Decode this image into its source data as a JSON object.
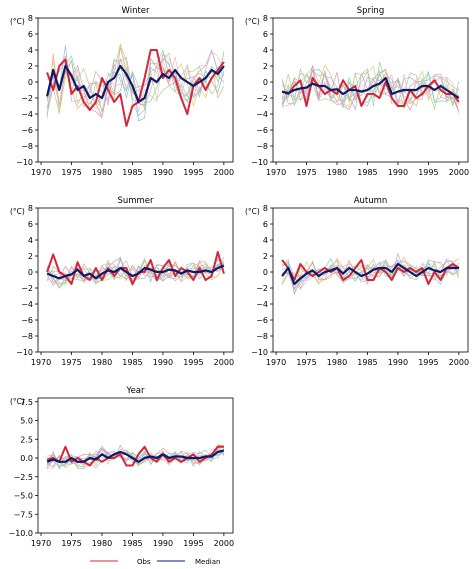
{
  "figure": {
    "colors": {
      "obs": "#d62739",
      "median": "#0a1a6e",
      "members": [
        "#9ab7d6",
        "#f4a582",
        "#8fd19e",
        "#c6a0d8",
        "#e7c46b",
        "#7fc4c9",
        "#d98db0",
        "#b7b7b7",
        "#a8d08d",
        "#f2b8c6"
      ]
    }
  },
  "legend": {
    "obs_label": "Obs",
    "median_label": "Median",
    "placement": "bottom-center"
  },
  "chart_data": [
    {
      "type": "line",
      "title": "Winter",
      "ylabel": "(°C)",
      "x": [
        1971,
        1972,
        1973,
        1974,
        1975,
        1976,
        1977,
        1978,
        1979,
        1980,
        1981,
        1982,
        1983,
        1984,
        1985,
        1986,
        1987,
        1988,
        1989,
        1990,
        1991,
        1992,
        1993,
        1994,
        1995,
        1996,
        1997,
        1998,
        1999,
        2000
      ],
      "ylim": [
        -10,
        8
      ],
      "yticks": [
        "8",
        "6",
        "4",
        "2",
        "0",
        "−2",
        "−4",
        "−6",
        "−8",
        "−10"
      ],
      "xticks": [
        "1970",
        "1975",
        "1980",
        "1985",
        "1990",
        "1995",
        "2000"
      ],
      "series": [
        {
          "name": "Obs",
          "values": [
            1.2,
            -1.0,
            2.0,
            2.8,
            -1.5,
            -0.5,
            -2.5,
            -3.5,
            -2.5,
            0.5,
            -1.0,
            -2.5,
            -1.5,
            -5.5,
            -3.0,
            -2.5,
            0.5,
            4.0,
            4.0,
            0.5,
            1.5,
            0.5,
            -2.0,
            -4.0,
            -0.5,
            0.5,
            -1.0,
            0.5,
            1.5,
            2.5
          ]
        },
        {
          "name": "Median",
          "values": [
            -1.8,
            1.5,
            -1.0,
            2.0,
            0.8,
            -1.0,
            -0.5,
            -2.0,
            -1.5,
            -2.0,
            0.0,
            0.5,
            2.0,
            1.0,
            -0.5,
            -2.5,
            -2.0,
            0.5,
            0.0,
            1.0,
            0.5,
            1.5,
            0.5,
            0.0,
            -0.5,
            0.0,
            0.5,
            1.5,
            1.0,
            2.0
          ]
        }
      ]
    },
    {
      "type": "line",
      "title": "Spring",
      "ylabel": "(°C)",
      "x": [
        1971,
        1972,
        1973,
        1974,
        1975,
        1976,
        1977,
        1978,
        1979,
        1980,
        1981,
        1982,
        1983,
        1984,
        1985,
        1986,
        1987,
        1988,
        1989,
        1990,
        1991,
        1992,
        1993,
        1994,
        1995,
        1996,
        1997,
        1998,
        1999,
        2000
      ],
      "ylim": [
        -10,
        8
      ],
      "yticks": [
        "8",
        "6",
        "4",
        "2",
        "0",
        "−2",
        "−4",
        "−6",
        "−8",
        "−10"
      ],
      "xticks": [
        "1970",
        "1975",
        "1980",
        "1985",
        "1990",
        "1995",
        "2000"
      ],
      "series": [
        {
          "name": "Obs",
          "values": [
            -1.2,
            -1.5,
            -0.5,
            0.2,
            -3.0,
            0.5,
            -0.5,
            -1.5,
            -1.0,
            -1.5,
            0.2,
            -1.0,
            -0.5,
            -3.0,
            -1.5,
            -1.5,
            -2.0,
            0.0,
            -2.0,
            -3.0,
            -3.0,
            -1.0,
            -2.0,
            -1.5,
            -0.5,
            0.2,
            -1.0,
            -1.5,
            -1.5,
            -2.5
          ]
        },
        {
          "name": "Median",
          "values": [
            -1.2,
            -1.4,
            -1.0,
            -0.8,
            -0.7,
            -0.2,
            -0.5,
            -0.5,
            -1.0,
            -0.9,
            -1.5,
            -1.0,
            -1.0,
            -1.2,
            -1.0,
            -0.5,
            -0.2,
            0.5,
            -1.5,
            -1.2,
            -1.0,
            -1.0,
            -1.0,
            -0.5,
            -0.5,
            -1.0,
            -0.5,
            -1.0,
            -1.5,
            -2.0
          ]
        }
      ]
    },
    {
      "type": "line",
      "title": "Summer",
      "ylabel": "(°C)",
      "x": [
        1971,
        1972,
        1973,
        1974,
        1975,
        1976,
        1977,
        1978,
        1979,
        1980,
        1981,
        1982,
        1983,
        1984,
        1985,
        1986,
        1987,
        1988,
        1989,
        1990,
        1991,
        1992,
        1993,
        1994,
        1995,
        1996,
        1997,
        1998,
        1999,
        2000
      ],
      "ylim": [
        -10,
        8
      ],
      "yticks": [
        "8",
        "6",
        "4",
        "2",
        "0",
        "−2",
        "−4",
        "−6",
        "−8",
        "−10"
      ],
      "xticks": [
        "1970",
        "1975",
        "1980",
        "1985",
        "1990",
        "1995",
        "2000"
      ],
      "series": [
        {
          "name": "Obs",
          "values": [
            0.0,
            2.2,
            0.0,
            -0.5,
            -1.5,
            1.2,
            -0.5,
            -1.0,
            0.5,
            -1.0,
            0.5,
            -0.5,
            0.5,
            0.5,
            -1.5,
            0.0,
            0.0,
            1.5,
            -1.0,
            0.5,
            1.5,
            -0.5,
            0.5,
            0.0,
            -1.0,
            0.5,
            -1.0,
            -0.5,
            2.5,
            -0.2
          ]
        },
        {
          "name": "Median",
          "values": [
            -0.2,
            -0.5,
            -0.8,
            -0.5,
            -0.3,
            0.3,
            -0.5,
            -0.2,
            -0.8,
            -0.2,
            0.2,
            0.0,
            0.5,
            0.0,
            -0.5,
            -0.2,
            0.5,
            0.3,
            0.0,
            0.0,
            0.3,
            0.2,
            -0.2,
            0.2,
            0.0,
            0.0,
            0.2,
            0.0,
            0.5,
            0.8
          ]
        }
      ]
    },
    {
      "type": "line",
      "title": "Autumn",
      "ylabel": "(°C)",
      "x": [
        1971,
        1972,
        1973,
        1974,
        1975,
        1976,
        1977,
        1978,
        1979,
        1980,
        1981,
        1982,
        1983,
        1984,
        1985,
        1986,
        1987,
        1988,
        1989,
        1990,
        1991,
        1992,
        1993,
        1994,
        1995,
        1996,
        1997,
        1998,
        1999,
        2000
      ],
      "ylim": [
        -10,
        8
      ],
      "yticks": [
        "8",
        "6",
        "4",
        "2",
        "0",
        "−2",
        "−4",
        "−6",
        "−8",
        "−10"
      ],
      "xticks": [
        "1970",
        "1975",
        "1980",
        "1985",
        "1990",
        "1995",
        "2000"
      ],
      "series": [
        {
          "name": "Obs",
          "values": [
            1.5,
            0.5,
            -1.0,
            1.0,
            0.0,
            -0.5,
            0.0,
            0.5,
            0.0,
            0.5,
            -1.0,
            -0.5,
            0.5,
            1.5,
            -1.0,
            -1.0,
            0.5,
            0.0,
            -1.0,
            0.5,
            0.0,
            0.5,
            0.0,
            0.5,
            -1.5,
            0.0,
            -1.0,
            0.5,
            1.0,
            0.5
          ]
        },
        {
          "name": "Median",
          "values": [
            -0.5,
            0.5,
            -1.5,
            -0.8,
            -0.2,
            0.2,
            -0.5,
            0.0,
            0.2,
            0.5,
            -0.2,
            0.5,
            0.0,
            -0.5,
            -0.2,
            0.3,
            0.5,
            0.5,
            0.0,
            1.0,
            0.5,
            0.0,
            -0.5,
            0.0,
            0.5,
            0.2,
            0.0,
            0.5,
            0.5,
            0.5
          ]
        }
      ]
    },
    {
      "type": "line",
      "title": "Year",
      "ylabel": "(°C)",
      "x": [
        1971,
        1972,
        1973,
        1974,
        1975,
        1976,
        1977,
        1978,
        1979,
        1980,
        1981,
        1982,
        1983,
        1984,
        1985,
        1986,
        1987,
        1988,
        1989,
        1990,
        1991,
        1992,
        1993,
        1994,
        1995,
        1996,
        1997,
        1998,
        1999,
        2000
      ],
      "ylim": [
        -10,
        8
      ],
      "yticks": [
        "7.5",
        "5.0",
        "2.5",
        "0.0",
        "−2.5",
        "−5.0",
        "−7.5",
        "−10.0"
      ],
      "xticks": [
        "1970",
        "1975",
        "1980",
        "1985",
        "1990",
        "1995",
        "2000"
      ],
      "series": [
        {
          "name": "Obs",
          "values": [
            -0.2,
            0.0,
            -0.5,
            1.5,
            -0.5,
            0.0,
            -0.5,
            -1.0,
            0.0,
            -0.5,
            0.0,
            0.0,
            0.5,
            -1.0,
            -1.0,
            0.5,
            1.5,
            0.0,
            -0.5,
            0.5,
            -0.5,
            0.0,
            -0.5,
            0.0,
            0.5,
            -0.5,
            0.0,
            0.5,
            1.5,
            1.5
          ]
        },
        {
          "name": "Median",
          "values": [
            -0.5,
            -0.2,
            -0.5,
            -0.5,
            0.0,
            -0.5,
            -0.5,
            0.0,
            -0.2,
            0.5,
            0.0,
            0.5,
            0.8,
            0.5,
            0.0,
            -0.5,
            0.0,
            0.2,
            0.0,
            0.5,
            0.0,
            0.2,
            0.2,
            0.0,
            0.0,
            0.0,
            0.2,
            0.2,
            0.8,
            1.0
          ]
        }
      ]
    }
  ]
}
